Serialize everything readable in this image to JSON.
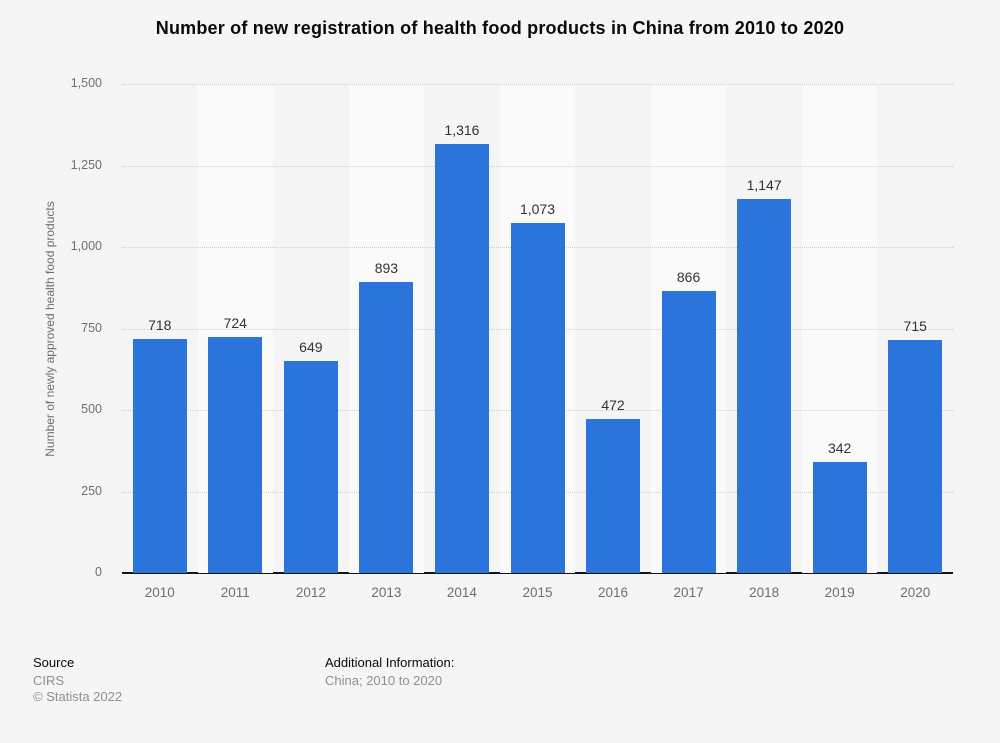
{
  "title": "Number of new registration of health food products in China from 2010 to 2020",
  "chart_data": {
    "type": "bar",
    "title": "Number of new registration of health food products in China from 2010 to 2020",
    "categories": [
      "2010",
      "2011",
      "2012",
      "2013",
      "2014",
      "2015",
      "2016",
      "2017",
      "2018",
      "2019",
      "2020"
    ],
    "values": [
      718,
      724,
      649,
      893,
      1316,
      1073,
      472,
      866,
      1147,
      342,
      715
    ],
    "value_labels": [
      "718",
      "724",
      "649",
      "893",
      "1,316",
      "1,073",
      "472",
      "866",
      "1,147",
      "342",
      "715"
    ],
    "xlabel": "",
    "ylabel": "Number of newly approved health food products",
    "ylim": [
      0,
      1500
    ],
    "yticks": [
      0,
      250,
      500,
      750,
      1000,
      1250,
      1500
    ],
    "ytick_labels": [
      "0",
      "250",
      "500",
      "750",
      "1,000",
      "1,250",
      "1,500"
    ],
    "grid": "horizontal-dotted",
    "legend": "none",
    "colors": {
      "bar": "#2b74db",
      "band_light": "#fafafa",
      "band_dark": "#f5f5f5",
      "gridline": "#cccccc",
      "axis": "#141414"
    }
  },
  "footer": {
    "source_label": "Source",
    "source_value": "CIRS",
    "copyright": "© Statista 2022",
    "additional_label": "Additional Information:",
    "additional_value": "China; 2010 to 2020"
  }
}
